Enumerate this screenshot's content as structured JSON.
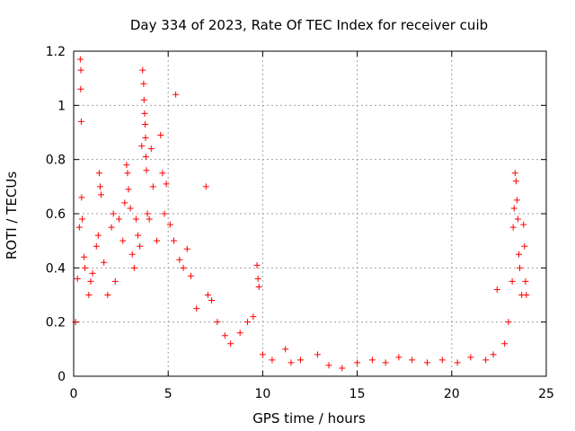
{
  "chart_data": {
    "type": "scatter",
    "title": "Day 334 of 2023, Rate Of TEC Index for receiver cuib",
    "xlabel": "GPS time / hours",
    "ylabel": "ROTI / TECUs",
    "xlim": [
      0,
      25
    ],
    "ylim": [
      0,
      1.2
    ],
    "x_ticks": [
      "0",
      "5",
      "10",
      "15",
      "20",
      "25"
    ],
    "y_ticks": [
      "0",
      "0.2",
      "0.4",
      "0.6",
      "0.8",
      "1",
      "1.2"
    ],
    "x_tick_values": [
      0,
      5,
      10,
      15,
      20,
      25
    ],
    "y_tick_values": [
      0,
      0.2,
      0.4,
      0.6,
      0.8,
      1.0,
      1.2
    ],
    "grid": true,
    "marker": "+",
    "color": "#ff0000",
    "series": [
      {
        "points": [
          [
            0.35,
            1.17
          ],
          [
            0.38,
            1.13
          ],
          [
            0.37,
            1.06
          ],
          [
            0.4,
            0.94
          ],
          [
            0.42,
            0.66
          ],
          [
            0.2,
            0.36
          ],
          [
            0.1,
            0.2
          ],
          [
            0.3,
            0.55
          ],
          [
            0.45,
            0.58
          ],
          [
            0.55,
            0.44
          ],
          [
            0.6,
            0.4
          ],
          [
            0.8,
            0.3
          ],
          [
            0.9,
            0.35
          ],
          [
            1.0,
            0.38
          ],
          [
            1.2,
            0.48
          ],
          [
            1.3,
            0.52
          ],
          [
            1.35,
            0.75
          ],
          [
            1.4,
            0.7
          ],
          [
            1.45,
            0.67
          ],
          [
            1.6,
            0.42
          ],
          [
            1.8,
            0.3
          ],
          [
            2.0,
            0.55
          ],
          [
            2.1,
            0.6
          ],
          [
            2.2,
            0.35
          ],
          [
            2.4,
            0.58
          ],
          [
            2.6,
            0.5
          ],
          [
            2.7,
            0.64
          ],
          [
            2.8,
            0.78
          ],
          [
            2.85,
            0.75
          ],
          [
            2.9,
            0.69
          ],
          [
            3.0,
            0.62
          ],
          [
            3.1,
            0.45
          ],
          [
            3.2,
            0.4
          ],
          [
            3.3,
            0.58
          ],
          [
            3.4,
            0.52
          ],
          [
            3.5,
            0.48
          ],
          [
            3.6,
            0.85
          ],
          [
            3.65,
            1.13
          ],
          [
            3.7,
            1.08
          ],
          [
            3.72,
            1.02
          ],
          [
            3.75,
            0.97
          ],
          [
            3.78,
            0.93
          ],
          [
            3.8,
            0.88
          ],
          [
            3.82,
            0.81
          ],
          [
            3.85,
            0.76
          ],
          [
            3.9,
            0.6
          ],
          [
            4.0,
            0.58
          ],
          [
            4.1,
            0.84
          ],
          [
            4.2,
            0.7
          ],
          [
            4.4,
            0.5
          ],
          [
            4.6,
            0.89
          ],
          [
            4.7,
            0.75
          ],
          [
            4.8,
            0.6
          ],
          [
            4.9,
            0.71
          ],
          [
            5.1,
            0.56
          ],
          [
            5.3,
            0.5
          ],
          [
            5.4,
            1.04
          ],
          [
            5.6,
            0.43
          ],
          [
            5.8,
            0.4
          ],
          [
            6.0,
            0.47
          ],
          [
            6.2,
            0.37
          ],
          [
            6.5,
            0.25
          ],
          [
            7.0,
            0.7
          ],
          [
            7.1,
            0.3
          ],
          [
            7.3,
            0.28
          ],
          [
            7.6,
            0.2
          ],
          [
            8.0,
            0.15
          ],
          [
            8.3,
            0.12
          ],
          [
            8.8,
            0.16
          ],
          [
            9.2,
            0.2
          ],
          [
            9.5,
            0.22
          ],
          [
            9.7,
            0.41
          ],
          [
            9.75,
            0.36
          ],
          [
            9.8,
            0.33
          ],
          [
            10.0,
            0.08
          ],
          [
            10.5,
            0.06
          ],
          [
            11.2,
            0.1
          ],
          [
            11.5,
            0.05
          ],
          [
            12.0,
            0.06
          ],
          [
            12.9,
            0.08
          ],
          [
            13.5,
            0.04
          ],
          [
            14.2,
            0.03
          ],
          [
            15.0,
            0.05
          ],
          [
            15.8,
            0.06
          ],
          [
            16.5,
            0.05
          ],
          [
            17.2,
            0.07
          ],
          [
            17.9,
            0.06
          ],
          [
            18.7,
            0.05
          ],
          [
            19.5,
            0.06
          ],
          [
            20.3,
            0.05
          ],
          [
            21.0,
            0.07
          ],
          [
            21.8,
            0.06
          ],
          [
            22.2,
            0.08
          ],
          [
            22.4,
            0.32
          ],
          [
            22.8,
            0.12
          ],
          [
            23.0,
            0.2
          ],
          [
            23.2,
            0.35
          ],
          [
            23.25,
            0.55
          ],
          [
            23.3,
            0.62
          ],
          [
            23.35,
            0.75
          ],
          [
            23.4,
            0.72
          ],
          [
            23.45,
            0.65
          ],
          [
            23.5,
            0.58
          ],
          [
            23.55,
            0.45
          ],
          [
            23.6,
            0.4
          ],
          [
            23.7,
            0.3
          ],
          [
            23.8,
            0.56
          ],
          [
            23.85,
            0.48
          ],
          [
            23.9,
            0.35
          ],
          [
            23.95,
            0.3
          ]
        ]
      }
    ]
  }
}
